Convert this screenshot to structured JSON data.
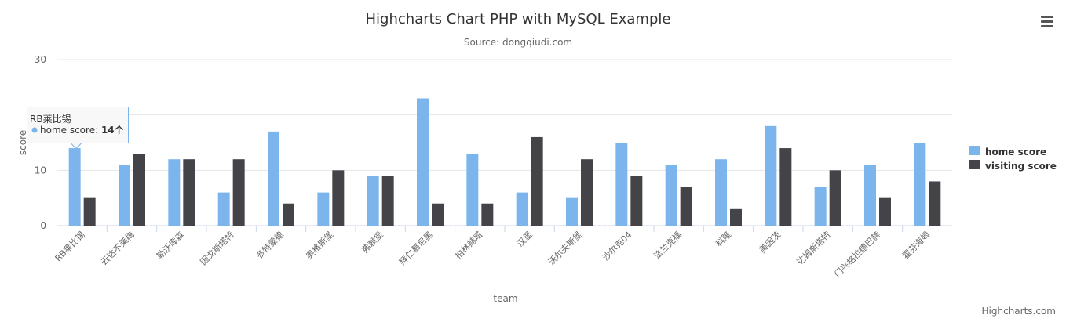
{
  "menu_icon": "hamburger-menu-icon",
  "credits": "Highcharts.com",
  "chart_data": {
    "type": "bar",
    "title": "Highcharts Chart PHP with MySQL Example",
    "subtitle": "Source: dongqiudi.com",
    "xlabel": "team",
    "ylabel": "score",
    "ylim": [
      0,
      30
    ],
    "yticks": [
      0,
      10,
      30
    ],
    "grid": true,
    "legend_position": "right",
    "categories": [
      "RB莱比锡",
      "云达不莱梅",
      "勒沃库森",
      "因戈斯塔特",
      "多特蒙德",
      "奥格斯堡",
      "弗赖堡",
      "拜仁慕尼黑",
      "柏林赫塔",
      "汉堡",
      "沃尔夫斯堡",
      "沙尔克04",
      "法兰克福",
      "科隆",
      "美因茨",
      "达姆斯塔特",
      "门兴格拉德巴赫",
      "霍芬海姆"
    ],
    "series": [
      {
        "name": "home score",
        "color": "#7cb5ec",
        "values": [
          14,
          11,
          12,
          6,
          17,
          6,
          9,
          23,
          13,
          6,
          5,
          15,
          11,
          12,
          18,
          7,
          11,
          15
        ]
      },
      {
        "name": "visiting score",
        "color": "#434348",
        "values": [
          5,
          13,
          12,
          12,
          4,
          10,
          9,
          4,
          4,
          16,
          12,
          9,
          7,
          3,
          14,
          10,
          5,
          8
        ]
      }
    ],
    "tooltip": {
      "category": "RB莱比锡",
      "series": "home score",
      "value": "14个"
    }
  }
}
